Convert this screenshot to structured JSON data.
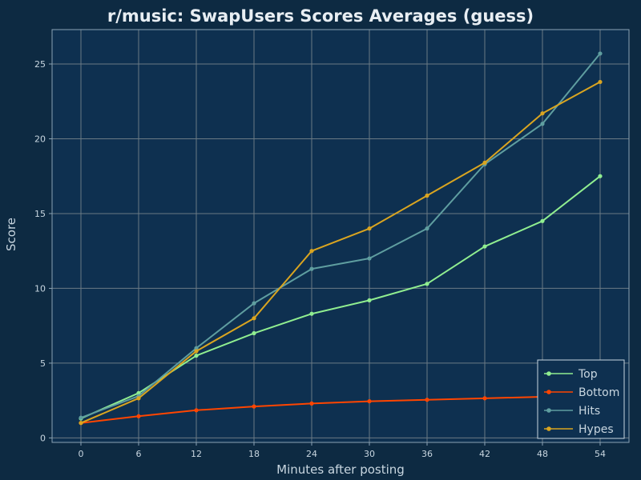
{
  "colors": {
    "figure_background": "#0d2a42",
    "plot_background": "#0e3050",
    "grid": "#6b7a85",
    "axis": "#8aa3b5",
    "text": "#c8d6e0",
    "title": "#e8eef3"
  },
  "chart_data": {
    "type": "line",
    "title": "r/music: SwapUsers Scores Averages (guess)",
    "xlabel": "Minutes after posting",
    "ylabel": "Score",
    "x": [
      0,
      6,
      12,
      18,
      24,
      30,
      36,
      42,
      48,
      54
    ],
    "xticks": [
      "0",
      "6",
      "12",
      "18",
      "24",
      "30",
      "36",
      "42",
      "48",
      "54"
    ],
    "yticks": [
      "0",
      "5",
      "10",
      "15",
      "20",
      "25"
    ],
    "xlim": [
      -3,
      57
    ],
    "ylim": [
      -0.3,
      27.3
    ],
    "grid": true,
    "legend_position": "bottom-right",
    "series": [
      {
        "name": "Top",
        "color": "#90ee90",
        "values": [
          1.3,
          3.0,
          5.5,
          7.0,
          8.3,
          9.2,
          10.3,
          12.8,
          14.5,
          17.5
        ]
      },
      {
        "name": "Bottom",
        "color": "#ff4500",
        "values": [
          1.0,
          1.45,
          1.85,
          2.1,
          2.3,
          2.45,
          2.55,
          2.65,
          2.75,
          2.85
        ]
      },
      {
        "name": "Hits",
        "color": "#5f9ea0",
        "values": [
          1.35,
          2.8,
          6.0,
          9.0,
          11.3,
          12.0,
          14.0,
          18.3,
          21.0,
          25.7
        ]
      },
      {
        "name": "Hypes",
        "color": "#daa520",
        "values": [
          1.0,
          2.65,
          5.8,
          8.0,
          12.5,
          14.0,
          16.2,
          18.4,
          21.7,
          23.8
        ]
      }
    ]
  }
}
